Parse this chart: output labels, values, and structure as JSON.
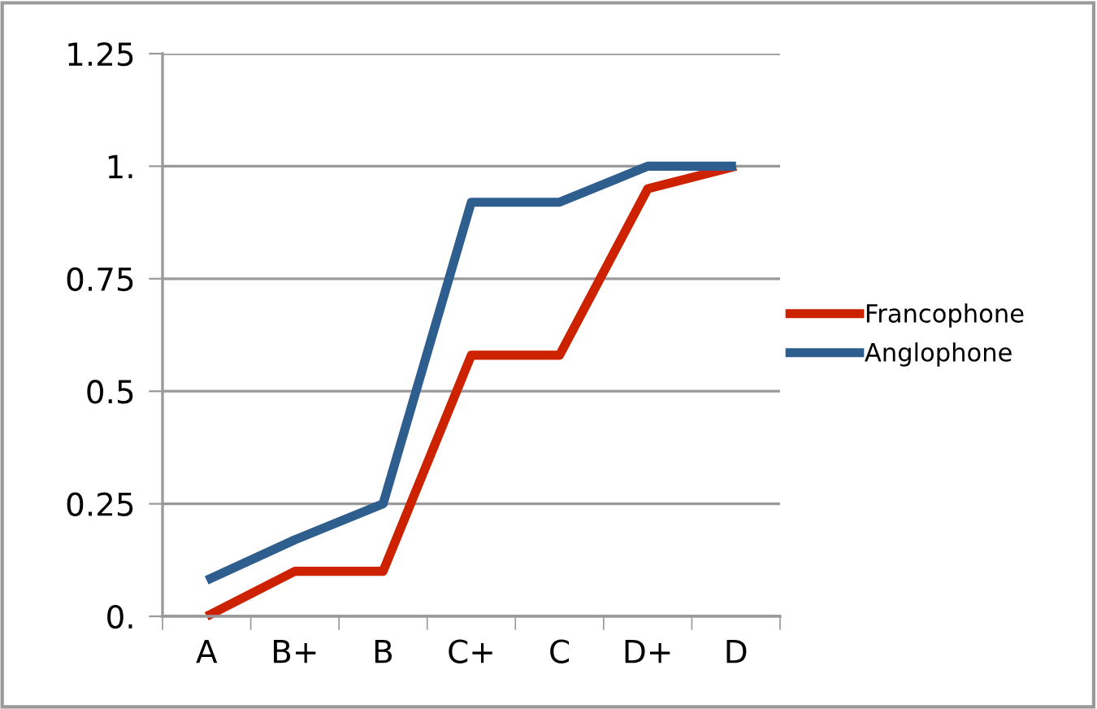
{
  "chart_data": {
    "type": "line",
    "categories": [
      "A",
      "B+",
      "B",
      "C+",
      "C",
      "D+",
      "D"
    ],
    "series": [
      {
        "name": "Francophone",
        "color": "#cc2200",
        "values": [
          0,
          0.1,
          0.1,
          0.58,
          0.58,
          0.95,
          1
        ]
      },
      {
        "name": "Anglophone",
        "color": "#2e5e8e",
        "values": [
          0.08,
          0.17,
          0.25,
          0.92,
          0.92,
          1,
          1
        ]
      }
    ],
    "ylim": [
      0,
      1.25
    ],
    "yticks": [
      {
        "value": 0,
        "label": "0."
      },
      0.25,
      0.5,
      0.75,
      {
        "value": 1,
        "label": "1."
      },
      1.25
    ],
    "grid": "y",
    "legend": "right",
    "marker": "none",
    "line_style": "solid"
  }
}
